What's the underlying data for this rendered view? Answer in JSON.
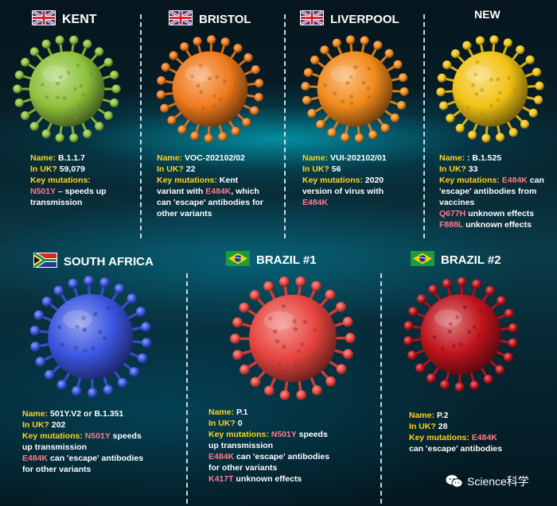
{
  "variants": [
    {
      "title": "KENT",
      "flag": "uk",
      "color": "#8ec23c",
      "name_label": "Name:",
      "name": "B.1.1.7",
      "uk_label": "In UK?",
      "uk": "59,079",
      "key_label": "Key mutations:",
      "key_text": [
        [
          {
            "t": "N501Y",
            "m": true
          },
          {
            "t": " – speeds up"
          }
        ],
        [
          {
            "t": "transmission"
          }
        ]
      ]
    },
    {
      "title": "BRISTOL",
      "flag": "uk",
      "color": "#f07a1e",
      "name_label": "Name:",
      "name": "VOC-202102/02",
      "uk_label": "In UK?",
      "uk": "22",
      "key_label": "Key mutations:",
      "key_text": [
        [
          {
            "t": "Key mutations: ",
            "k": true
          },
          {
            "t": "Kent"
          }
        ],
        [
          {
            "t": "variant with "
          },
          {
            "t": "E484K",
            "m": true
          },
          {
            "t": ", which"
          }
        ],
        [
          {
            "t": "can 'escape' antibodies for"
          }
        ],
        [
          {
            "t": "other variants"
          }
        ]
      ]
    },
    {
      "title": "LIVERPOOL",
      "flag": "uk",
      "color": "#f28a1c",
      "name_label": "Name:",
      "name": "VUI-202102/01",
      "uk_label": "In UK?",
      "uk": "56",
      "key_label": "Key mutations:",
      "key_text": [
        [
          {
            "t": "Key mutations: ",
            "k": true
          },
          {
            "t": "2020"
          }
        ],
        [
          {
            "t": "version of virus with"
          }
        ],
        [
          {
            "t": "E484K",
            "m": true
          }
        ]
      ]
    },
    {
      "title": "NEW",
      "flag": "",
      "color": "#f2c315",
      "name_label": "Name:",
      "name": ": B.1.525",
      "uk_label": "In UK?",
      "uk": "33",
      "key_label": "Key mutations:",
      "key_text": [
        [
          {
            "t": "Key mutations: ",
            "k": true
          },
          {
            "t": "E484K",
            "m": true
          },
          {
            "t": " can"
          }
        ],
        [
          {
            "t": "'escape' antibodies from"
          }
        ],
        [
          {
            "t": "vaccines"
          }
        ],
        [
          {
            "t": "Q677H",
            "m": true
          },
          {
            "t": " unknown effects"
          }
        ],
        [
          {
            "t": "F888L",
            "m": true
          },
          {
            "t": " unknown effects"
          }
        ]
      ]
    },
    {
      "title": "SOUTH AFRICA",
      "flag": "za",
      "color": "#3b55e0",
      "name_label": "Name:",
      "name": "501Y.V2 or B.1.351",
      "uk_label": "In UK?",
      "uk": "202",
      "key_label": "Key mutations:",
      "key_text": [
        [
          {
            "t": "Key mutations: ",
            "k": true
          },
          {
            "t": "N501Y",
            "m": true
          },
          {
            "t": " speeds"
          }
        ],
        [
          {
            "t": "up transmission"
          }
        ],
        [
          {
            "t": "E484K",
            "m": true
          },
          {
            "t": " can 'escape' antibodies"
          }
        ],
        [
          {
            "t": "for other variants"
          }
        ]
      ]
    },
    {
      "title": "BRAZIL #1",
      "flag": "br",
      "color": "#e8453e",
      "name_label": "Name:",
      "name": "P.1",
      "uk_label": "In UK?",
      "uk": "0",
      "key_label": "Key mutations:",
      "key_text": [
        [
          {
            "t": "Key mutations: ",
            "k": true
          },
          {
            "t": "N501Y",
            "m": true
          },
          {
            "t": " speeds"
          }
        ],
        [
          {
            "t": "up transmission"
          }
        ],
        [
          {
            "t": "E484K",
            "m": true
          },
          {
            "t": " can 'escape' antibodies"
          }
        ],
        [
          {
            "t": "for other variants"
          }
        ],
        [
          {
            "t": "K417T",
            "m": true
          },
          {
            "t": " unknown effects"
          }
        ]
      ]
    },
    {
      "title": "BRAZIL #2",
      "flag": "br",
      "color": "#c0141c",
      "name_label": "Name:",
      "name": "P.2",
      "uk_label": "In UK?",
      "uk": "28",
      "key_label": "Key mutations:",
      "key_text": [
        [
          {
            "t": "Key mutations: ",
            "k": true
          },
          {
            "t": "E484K",
            "m": true
          }
        ],
        [
          {
            "t": "can 'escape' antibodies"
          }
        ]
      ]
    }
  ],
  "watermark": {
    "text": "Science科学",
    "icon": "wechat-icon"
  }
}
